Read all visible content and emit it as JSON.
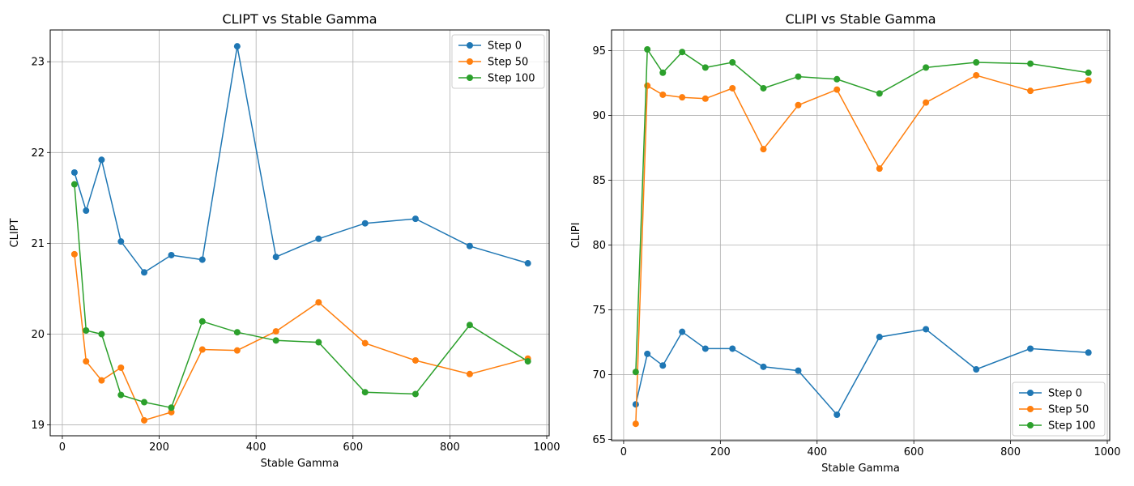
{
  "chart_data": [
    {
      "type": "line",
      "title": "CLIPT vs Stable Gamma",
      "xlabel": "Stable Gamma",
      "ylabel": "CLIPT",
      "xlim": [
        -25,
        1005
      ],
      "ylim": [
        18.88,
        23.35
      ],
      "xticks": [
        0,
        200,
        400,
        600,
        800,
        1000
      ],
      "yticks": [
        19,
        20,
        21,
        22,
        23
      ],
      "grid": true,
      "legend_position": "upper right",
      "x": [
        25,
        49,
        81,
        121,
        169,
        225,
        289,
        361,
        441,
        529,
        625,
        729,
        841,
        961
      ],
      "series": [
        {
          "name": "Step 0",
          "color": "#1f77b4",
          "values": [
            21.78,
            21.36,
            21.92,
            21.02,
            20.68,
            20.87,
            20.82,
            23.17,
            20.85,
            21.05,
            21.22,
            21.27,
            20.97,
            20.78
          ]
        },
        {
          "name": "Step 50",
          "color": "#ff7f0e",
          "values": [
            20.88,
            19.7,
            19.49,
            19.63,
            19.05,
            19.14,
            19.83,
            19.82,
            20.03,
            20.35,
            19.9,
            19.71,
            19.56,
            19.73
          ]
        },
        {
          "name": "Step 100",
          "color": "#2ca02c",
          "values": [
            21.65,
            20.04,
            20.0,
            19.33,
            19.25,
            19.19,
            20.14,
            20.02,
            19.93,
            19.91,
            19.36,
            19.34,
            20.1,
            19.7
          ]
        }
      ]
    },
    {
      "type": "line",
      "title": "CLIPI vs Stable Gamma",
      "xlabel": "Stable Gamma",
      "ylabel": "CLIPI",
      "xlim": [
        -25,
        1005
      ],
      "ylim": [
        64.9,
        96.6
      ],
      "xticks": [
        0,
        200,
        400,
        600,
        800,
        1000
      ],
      "yticks": [
        65,
        70,
        75,
        80,
        85,
        90,
        95
      ],
      "grid": true,
      "legend_position": "lower right",
      "x": [
        25,
        49,
        81,
        121,
        169,
        225,
        289,
        361,
        441,
        529,
        625,
        729,
        841,
        961
      ],
      "series": [
        {
          "name": "Step 0",
          "color": "#1f77b4",
          "values": [
            67.7,
            71.6,
            70.7,
            73.3,
            72.0,
            72.0,
            70.6,
            70.3,
            66.9,
            72.9,
            73.5,
            70.4,
            72.0,
            71.7
          ]
        },
        {
          "name": "Step 50",
          "color": "#ff7f0e",
          "values": [
            66.2,
            92.3,
            91.6,
            91.4,
            91.3,
            92.1,
            87.4,
            90.8,
            92.0,
            85.9,
            91.0,
            93.1,
            91.9,
            92.7
          ]
        },
        {
          "name": "Step 100",
          "color": "#2ca02c",
          "values": [
            70.2,
            95.1,
            93.3,
            94.9,
            93.7,
            94.1,
            92.1,
            93.0,
            92.8,
            91.7,
            93.7,
            94.1,
            94.0,
            93.3
          ]
        }
      ]
    }
  ]
}
